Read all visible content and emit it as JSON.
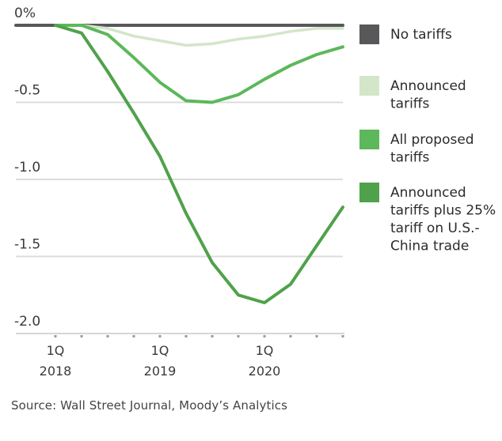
{
  "chart_data": {
    "type": "line",
    "title": "",
    "xlabel": "",
    "ylabel": "",
    "ylim": [
      -2.0,
      0
    ],
    "grid": true,
    "y_ticks": [
      {
        "value": 0,
        "label": "0%"
      },
      {
        "value": -0.5,
        "label": "-0.5"
      },
      {
        "value": -1.0,
        "label": "-1.0"
      },
      {
        "value": -1.5,
        "label": "-1.5"
      },
      {
        "value": -2.0,
        "label": "-2.0"
      }
    ],
    "x": [
      "1Q 2018",
      "2Q 2018",
      "3Q 2018",
      "4Q 2018",
      "1Q 2019",
      "2Q 2019",
      "3Q 2019",
      "4Q 2019",
      "1Q 2020",
      "2Q 2020",
      "3Q 2020",
      "4Q 2020"
    ],
    "x_tick_labels": [
      {
        "index": 0,
        "line1": "1Q",
        "line2": "2018"
      },
      {
        "index": 4,
        "line1": "1Q",
        "line2": "2019"
      },
      {
        "index": 8,
        "line1": "1Q",
        "line2": "2020"
      }
    ],
    "legend_position": "right",
    "series": [
      {
        "name": "No tariffs",
        "legend_lines": [
          "No tariffs"
        ],
        "color": "#58585a",
        "values": [
          0,
          0,
          0,
          0,
          0,
          0,
          0,
          0,
          0,
          0,
          0,
          0
        ]
      },
      {
        "name": "Announced tariffs",
        "legend_lines": [
          "Announced",
          "tariffs"
        ],
        "color": "#d3e6c9",
        "values": [
          0,
          0,
          -0.02,
          -0.07,
          -0.1,
          -0.13,
          -0.12,
          -0.09,
          -0.07,
          -0.04,
          -0.02,
          -0.02
        ]
      },
      {
        "name": "All proposed tariffs",
        "legend_lines": [
          "All proposed",
          "tariffs"
        ],
        "color": "#5cb85a",
        "values": [
          0,
          0,
          -0.06,
          -0.21,
          -0.37,
          -0.49,
          -0.5,
          -0.45,
          -0.35,
          -0.26,
          -0.19,
          -0.14
        ]
      },
      {
        "name": "Announced tariffs plus 25% tariff on U.S.-China trade",
        "legend_lines": [
          "Announced",
          "tariffs plus 25%",
          "tariff on U.S.-",
          "China trade"
        ],
        "color": "#4fa24b",
        "values": [
          0,
          -0.05,
          -0.3,
          -0.57,
          -0.85,
          -1.22,
          -1.54,
          -1.75,
          -1.8,
          -1.68,
          -1.43,
          -1.18
        ]
      }
    ]
  },
  "source": "Source: Wall Street Journal, Moody’s Analytics"
}
